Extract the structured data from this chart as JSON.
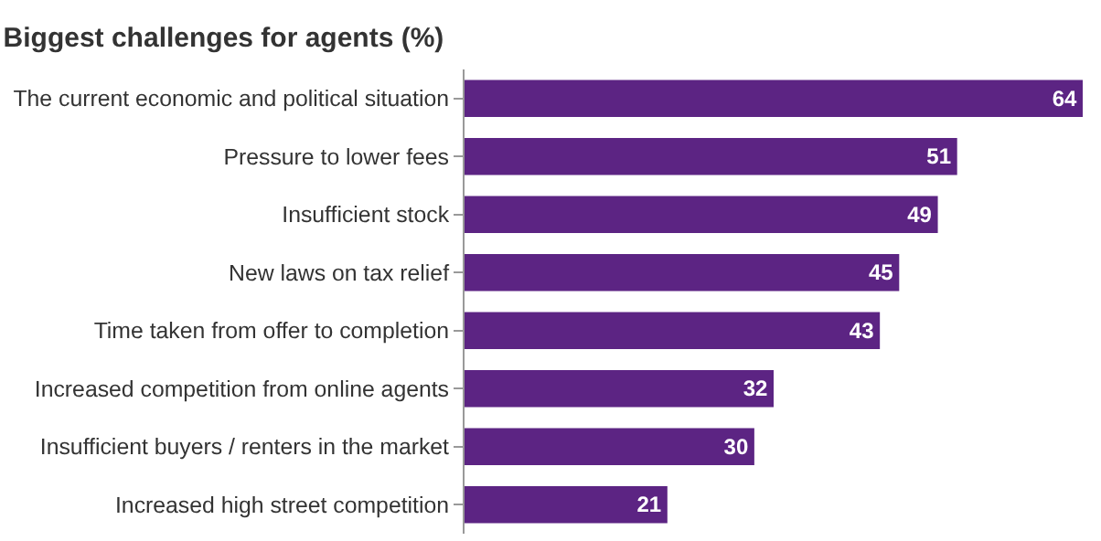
{
  "chart_data": {
    "type": "bar",
    "orientation": "horizontal",
    "title": "Biggest challenges for agents (%)",
    "categories": [
      "The current economic and political situation",
      "Pressure to lower fees",
      "Insufficient stock",
      "New laws on tax relief",
      "Time taken from offer to completion",
      "Increased competition from online agents",
      "Insufficient buyers / renters in the market",
      "Increased high street competition"
    ],
    "values": [
      64,
      51,
      49,
      45,
      43,
      32,
      30,
      21
    ],
    "color": "#5c2483",
    "data_labels": true,
    "grid": false,
    "legend": false
  }
}
